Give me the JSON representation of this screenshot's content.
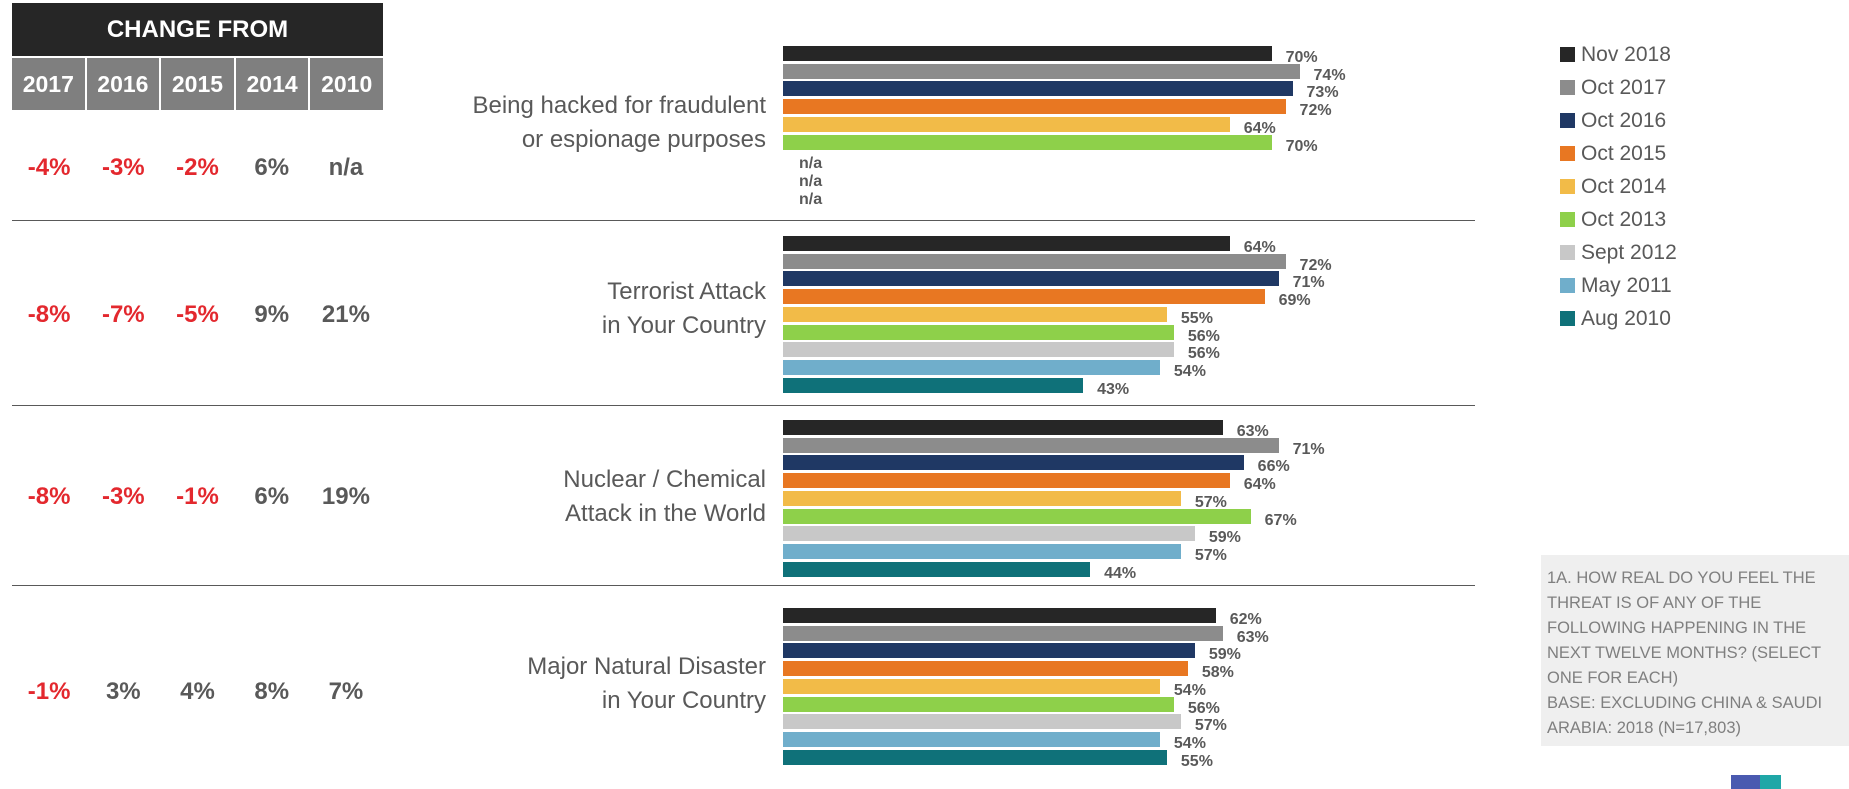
{
  "change_table": {
    "header": "CHANGE FROM",
    "years": [
      "2017",
      "2016",
      "2015",
      "2014",
      "2010"
    ],
    "rows": [
      [
        "-4%",
        "-3%",
        "-2%",
        "6%",
        "n/a"
      ],
      [
        "-8%",
        "-7%",
        "-5%",
        "9%",
        "21%"
      ],
      [
        "-8%",
        "-3%",
        "-1%",
        "6%",
        "19%"
      ],
      [
        "-1%",
        "3%",
        "4%",
        "8%",
        "7%"
      ]
    ]
  },
  "legend": {
    "items": [
      {
        "label": "Nov 2018",
        "color": "#262626"
      },
      {
        "label": "Oct 2017",
        "color": "#8c8c8c"
      },
      {
        "label": "Oct 2016",
        "color": "#1f3864"
      },
      {
        "label": "Oct 2015",
        "color": "#e87722"
      },
      {
        "label": "Oct 2014",
        "color": "#f2bb48"
      },
      {
        "label": "Oct 2013",
        "color": "#8ed04a"
      },
      {
        "label": "Sept 2012",
        "color": "#c8c8c8"
      },
      {
        "label": "May 2011",
        "color": "#70aecb"
      },
      {
        "label": "Aug 2010",
        "color": "#0f7179"
      }
    ]
  },
  "note": "1A. HOW REAL DO YOU FEEL THE THREAT IS OF ANY OF THE FOLLOWING HAPPENING IN THE NEXT TWELVE MONTHS? (SELECT ONE FOR EACH)\nBASE: EXCLUDING CHINA & SAUDI ARABIA: 2018 (N=17,803)",
  "chart_data": {
    "type": "bar",
    "orientation": "horizontal",
    "categories": [
      "Being hacked for fraudulent\nor espionage purposes",
      "Terrorist Attack\nin Your Country",
      "Nuclear / Chemical\nAttack in the World",
      "Major Natural Disaster\nin Your Country"
    ],
    "series": [
      {
        "name": "Nov 2018",
        "values": [
          70,
          64,
          63,
          62
        ],
        "labels": [
          "70%",
          "64%",
          "63%",
          "62%"
        ]
      },
      {
        "name": "Oct 2017",
        "values": [
          74,
          72,
          71,
          63
        ],
        "labels": [
          "74%",
          "72%",
          "71%",
          "63%"
        ]
      },
      {
        "name": "Oct 2016",
        "values": [
          73,
          71,
          66,
          59
        ],
        "labels": [
          "73%",
          "71%",
          "66%",
          "59%"
        ]
      },
      {
        "name": "Oct 2015",
        "values": [
          72,
          69,
          64,
          58
        ],
        "labels": [
          "72%",
          "69%",
          "64%",
          "58%"
        ]
      },
      {
        "name": "Oct 2014",
        "values": [
          64,
          55,
          57,
          54
        ],
        "labels": [
          "64%",
          "55%",
          "57%",
          "54%"
        ]
      },
      {
        "name": "Oct 2013",
        "values": [
          70,
          56,
          67,
          56
        ],
        "labels": [
          "70%",
          "56%",
          "67%",
          "56%"
        ]
      },
      {
        "name": "Sept 2012",
        "values": [
          null,
          56,
          59,
          57
        ],
        "labels": [
          "n/a",
          "56%",
          "59%",
          "57%"
        ]
      },
      {
        "name": "May 2011",
        "values": [
          null,
          54,
          57,
          54
        ],
        "labels": [
          "n/a",
          "54%",
          "57%",
          "54%"
        ]
      },
      {
        "name": "Aug 2010",
        "values": [
          null,
          43,
          44,
          55
        ],
        "labels": [
          "n/a",
          "43%",
          "44%",
          "55%"
        ]
      }
    ],
    "xlim": [
      0,
      100
    ],
    "legend_position": "right"
  }
}
